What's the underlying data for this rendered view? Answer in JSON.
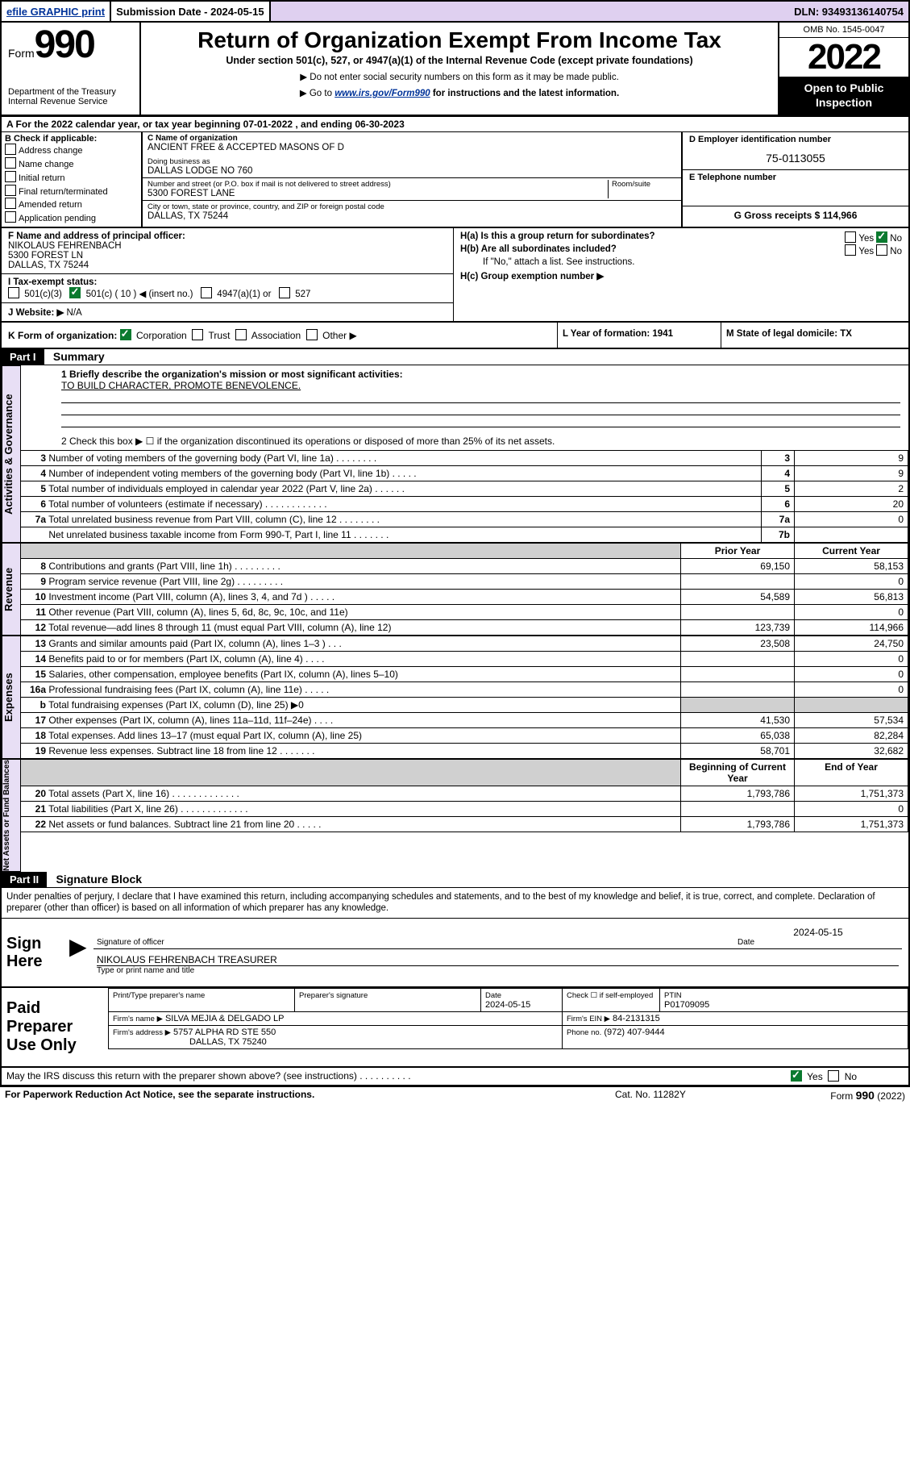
{
  "top": {
    "efile": "efile GRAPHIC print",
    "sub_label": "Submission Date - 2024-05-15",
    "dln": "DLN: 93493136140754"
  },
  "header": {
    "form_word": "Form",
    "form_num": "990",
    "dept": "Department of the Treasury\nInternal Revenue Service",
    "title": "Return of Organization Exempt From Income Tax",
    "sub1": "Under section 501(c), 527, or 4947(a)(1) of the Internal Revenue Code (except private foundations)",
    "sub2a": "▶ Do not enter social security numbers on this form as it may be made public.",
    "sub2b_pre": "▶ Go to ",
    "sub2b_link": "www.irs.gov/Form990",
    "sub2b_post": " for instructions and the latest information.",
    "omb": "OMB No. 1545-0047",
    "year": "2022",
    "open": "Open to Public Inspection"
  },
  "rowA": "A For the 2022 calendar year, or tax year beginning 07-01-2022    , and ending 06-30-2023",
  "checkB": {
    "label": "B Check if applicable:",
    "opt1": "Address change",
    "opt2": "Name change",
    "opt3": "Initial return",
    "opt4": "Final return/terminated",
    "opt5": "Amended return",
    "opt6": "Application pending"
  },
  "org": {
    "c_label": "C Name of organization",
    "name": "ANCIENT FREE & ACCEPTED MASONS OF D",
    "dba_label": "Doing business as",
    "dba": "DALLAS LODGE NO 760",
    "street_label": "Number and street (or P.O. box if mail is not delivered to street address)",
    "room_label": "Room/suite",
    "street": "5300 FOREST LANE",
    "city_label": "City or town, state or province, country, and ZIP or foreign postal code",
    "city": "DALLAS, TX  75244"
  },
  "side": {
    "d_label": "D Employer identification number",
    "ein": "75-0113055",
    "e_label": "E Telephone number",
    "phone": "",
    "g_text": "G Gross receipts $ 114,966"
  },
  "officer": {
    "f_label": "F Name and address of principal officer:",
    "name": "NIKOLAUS FEHRENBACH",
    "street": "5300 FOREST LN",
    "city": "DALLAS, TX  75244"
  },
  "h": {
    "ha": "H(a)  Is this a group return for subordinates?",
    "hb": "H(b)  Are all subordinates included?",
    "hb_note": "If \"No,\" attach a list. See instructions.",
    "hc": "H(c)  Group exemption number ▶"
  },
  "i": {
    "label": "I   Tax-exempt status:",
    "opt1": "501(c)(3)",
    "opt2": "501(c) ( 10 ) ◀ (insert no.)",
    "opt3": "4947(a)(1) or",
    "opt4": "527"
  },
  "j": {
    "label": "J   Website: ▶",
    "value": "N/A"
  },
  "k": {
    "label": "K Form of organization:",
    "o1": "Corporation",
    "o2": "Trust",
    "o3": "Association",
    "o4": "Other ▶"
  },
  "l": {
    "label": "L Year of formation: 1941"
  },
  "m": {
    "label": "M State of legal domicile: TX"
  },
  "part1": {
    "bar": "Part I",
    "title": "Summary",
    "line1_label": "1  Briefly describe the organization's mission or most significant activities:",
    "mission": "TO BUILD CHARACTER, PROMOTE BENEVOLENCE.",
    "line2": "2  Check this box ▶ ☐  if the organization discontinued its operations or disposed of more than 25% of its net assets.",
    "side_labels": [
      "Activities & Governance",
      "Revenue",
      "Expenses",
      "Net Assets or Fund Balances"
    ],
    "hdr_prior": "Prior Year",
    "hdr_curr": "Current Year",
    "hdr_begin": "Beginning of Current Year",
    "hdr_end": "End of Year",
    "gov_rows": [
      {
        "n": "3",
        "t": "Number of voting members of the governing body (Part VI, line 1a)   .    .    .    .    .    .    .    .",
        "k": "3",
        "v": "9"
      },
      {
        "n": "4",
        "t": "Number of independent voting members of the governing body (Part VI, line 1b)   .    .    .    .    .",
        "k": "4",
        "v": "9"
      },
      {
        "n": "5",
        "t": "Total number of individuals employed in calendar year 2022 (Part V, line 2a)   .    .    .    .    .    .",
        "k": "5",
        "v": "2"
      },
      {
        "n": "6",
        "t": "Total number of volunteers (estimate if necessary)   .    .    .    .    .    .    .    .    .    .    .    .",
        "k": "6",
        "v": "20"
      },
      {
        "n": "7a",
        "t": "Total unrelated business revenue from Part VIII, column (C), line 12   .    .    .    .    .    .    .    .",
        "k": "7a",
        "v": "0"
      },
      {
        "n": "",
        "t": "Net unrelated business taxable income from Form 990-T, Part I, line 11   .    .    .    .    .    .    .",
        "k": "7b",
        "v": ""
      }
    ],
    "rev_rows": [
      {
        "n": "8",
        "t": "Contributions and grants (Part VIII, line 1h)   .    .    .    .    .    .    .    .    .",
        "p": "69,150",
        "c": "58,153"
      },
      {
        "n": "9",
        "t": "Program service revenue (Part VIII, line 2g)   .    .    .    .    .    .    .    .    .",
        "p": "",
        "c": "0"
      },
      {
        "n": "10",
        "t": "Investment income (Part VIII, column (A), lines 3, 4, and 7d )   .    .    .    .    .",
        "p": "54,589",
        "c": "56,813"
      },
      {
        "n": "11",
        "t": "Other revenue (Part VIII, column (A), lines 5, 6d, 8c, 9c, 10c, and 11e)",
        "p": "",
        "c": "0"
      },
      {
        "n": "12",
        "t": "Total revenue—add lines 8 through 11 (must equal Part VIII, column (A), line 12)",
        "p": "123,739",
        "c": "114,966"
      }
    ],
    "exp_rows": [
      {
        "n": "13",
        "t": "Grants and similar amounts paid (Part IX, column (A), lines 1–3 )   .    .    .",
        "p": "23,508",
        "c": "24,750"
      },
      {
        "n": "14",
        "t": "Benefits paid to or for members (Part IX, column (A), line 4)   .    .    .    .",
        "p": "",
        "c": "0"
      },
      {
        "n": "15",
        "t": "Salaries, other compensation, employee benefits (Part IX, column (A), lines 5–10)",
        "p": "",
        "c": "0"
      },
      {
        "n": "16a",
        "t": "Professional fundraising fees (Part IX, column (A), line 11e)   .    .    .    .    .",
        "p": "",
        "c": "0"
      },
      {
        "n": "b",
        "t": "Total fundraising expenses (Part IX, column (D), line 25) ▶0",
        "shade": true
      },
      {
        "n": "17",
        "t": "Other expenses (Part IX, column (A), lines 11a–11d, 11f–24e)   .    .    .    .",
        "p": "41,530",
        "c": "57,534"
      },
      {
        "n": "18",
        "t": "Total expenses. Add lines 13–17 (must equal Part IX, column (A), line 25)",
        "p": "65,038",
        "c": "82,284"
      },
      {
        "n": "19",
        "t": "Revenue less expenses. Subtract line 18 from line 12   .    .    .    .    .    .    .",
        "p": "58,701",
        "c": "32,682"
      }
    ],
    "na_rows": [
      {
        "n": "20",
        "t": "Total assets (Part X, line 16)   .    .    .    .    .    .    .    .    .    .    .    .    .",
        "p": "1,793,786",
        "c": "1,751,373"
      },
      {
        "n": "21",
        "t": "Total liabilities (Part X, line 26)   .    .    .    .    .    .    .    .    .    .    .    .    .",
        "p": "",
        "c": "0"
      },
      {
        "n": "22",
        "t": "Net assets or fund balances. Subtract line 21 from line 20   .    .    .    .    .",
        "p": "1,793,786",
        "c": "1,751,373"
      }
    ]
  },
  "part2": {
    "bar": "Part II",
    "title": "Signature Block",
    "decl": "Under penalties of perjury, I declare that I have examined this return, including accompanying schedules and statements, and to the best of my knowledge and belief, it is true, correct, and complete. Declaration of preparer (other than officer) is based on all information of which preparer has any knowledge."
  },
  "sign": {
    "label": "Sign Here",
    "sig_label": "Signature of officer",
    "date_label": "Date",
    "date_val": "2024-05-15",
    "name": "NIKOLAUS FEHRENBACH  TREASURER",
    "name_label": "Type or print name and title"
  },
  "preparer": {
    "label": "Paid Preparer Use Only",
    "h_name": "Print/Type preparer's name",
    "h_sig": "Preparer's signature",
    "h_date": "Date",
    "date": "2024-05-15",
    "h_check": "Check ☐ if self-employed",
    "h_ptin": "PTIN",
    "ptin": "P01709095",
    "firm_label": "Firm's name    ▶",
    "firm": "SILVA MEJIA & DELGADO LP",
    "ein_label": "Firm's EIN ▶",
    "ein": "84-2131315",
    "addr_label": "Firm's address ▶",
    "addr1": "5757 ALPHA RD STE 550",
    "addr2": "DALLAS, TX  75240",
    "phone_label": "Phone no.",
    "phone": "(972) 407-9444"
  },
  "discuss": "May the IRS discuss this return with the preparer shown above? (see instructions)   .    .    .    .    .    .    .    .    .    .",
  "footer": {
    "l": "For Paperwork Reduction Act Notice, see the separate instructions.",
    "m": "Cat. No. 11282Y",
    "r_pre": "Form ",
    "r_num": "990",
    "r_post": " (2022)"
  }
}
